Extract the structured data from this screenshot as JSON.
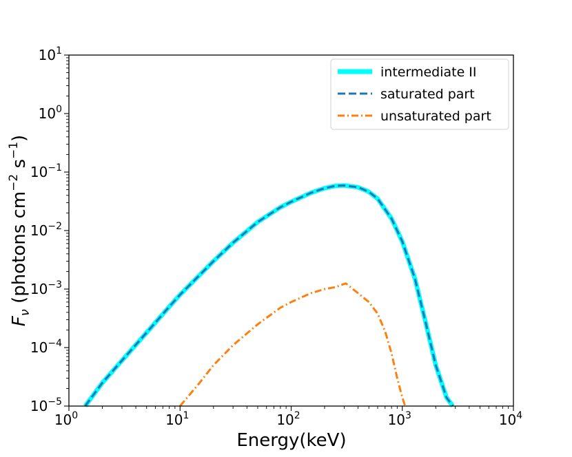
{
  "chart_data": {
    "type": "line",
    "title": "",
    "xlabel": "Energy(keV)",
    "ylabel": {
      "symbol": "F",
      "subscript": "ν",
      "text": " (photons cm",
      "exp1": "−2",
      "mid": " s",
      "exp2": "−1",
      "end": ")"
    },
    "xscale": "log",
    "yscale": "log",
    "xlim": [
      1,
      10000
    ],
    "ylim": [
      1e-05,
      10
    ],
    "grid": false,
    "legend_position": "top-right",
    "x_ticks": [
      {
        "value": 1,
        "base": "10",
        "exp": "0"
      },
      {
        "value": 10,
        "base": "10",
        "exp": "1"
      },
      {
        "value": 100,
        "base": "10",
        "exp": "2"
      },
      {
        "value": 1000,
        "base": "10",
        "exp": "3"
      },
      {
        "value": 10000,
        "base": "10",
        "exp": "4"
      }
    ],
    "y_ticks": [
      {
        "value": 1e-05,
        "base": "10",
        "exp": "−5"
      },
      {
        "value": 0.0001,
        "base": "10",
        "exp": "−4"
      },
      {
        "value": 0.001,
        "base": "10",
        "exp": "−3"
      },
      {
        "value": 0.01,
        "base": "10",
        "exp": "−2"
      },
      {
        "value": 0.1,
        "base": "10",
        "exp": "−1"
      },
      {
        "value": 1,
        "base": "10",
        "exp": "0"
      },
      {
        "value": 10,
        "base": "10",
        "exp": "1"
      }
    ],
    "series": [
      {
        "name": "intermediate II",
        "color": "#00ffff",
        "style": "solid-thick",
        "x": [
          1.4,
          2,
          3,
          5,
          8,
          10,
          20,
          30,
          50,
          80,
          100,
          150,
          200,
          250,
          300,
          400,
          500,
          600,
          800,
          1000,
          1300,
          1600,
          2000,
          2500,
          2850
        ],
        "y": [
          1e-05,
          2.5e-05,
          6e-05,
          0.00018,
          0.0005,
          0.0008,
          0.003,
          0.0062,
          0.014,
          0.025,
          0.031,
          0.044,
          0.053,
          0.058,
          0.059,
          0.055,
          0.046,
          0.035,
          0.016,
          0.0065,
          0.0015,
          0.0003,
          5e-05,
          1.4e-05,
          1e-05
        ]
      },
      {
        "name": "saturated part",
        "color": "#1f77b4",
        "style": "dashed",
        "x": [
          1.4,
          2,
          3,
          5,
          8,
          10,
          20,
          30,
          50,
          80,
          100,
          150,
          200,
          250,
          300,
          400,
          500,
          600,
          800,
          1000,
          1300,
          1600,
          2000,
          2500,
          2850
        ],
        "y": [
          1e-05,
          2.5e-05,
          6e-05,
          0.00018,
          0.0005,
          0.0008,
          0.003,
          0.0062,
          0.014,
          0.025,
          0.031,
          0.044,
          0.053,
          0.058,
          0.059,
          0.055,
          0.046,
          0.035,
          0.016,
          0.0065,
          0.0015,
          0.0003,
          5e-05,
          1.4e-05,
          1e-05
        ]
      },
      {
        "name": "unsaturated part",
        "color": "#ff7f0e",
        "style": "dashdot",
        "x": [
          10,
          15,
          20,
          30,
          50,
          80,
          100,
          150,
          200,
          250,
          310,
          400,
          500,
          600,
          700,
          800,
          900,
          1000,
          1060
        ],
        "y": [
          1e-05,
          2.5e-05,
          5e-05,
          0.00011,
          0.00025,
          0.00048,
          0.0006,
          0.00085,
          0.001,
          0.00108,
          0.00125,
          0.00085,
          0.0006,
          0.00038,
          0.00019,
          8e-05,
          3e-05,
          1.4e-05,
          1e-05
        ]
      }
    ]
  }
}
